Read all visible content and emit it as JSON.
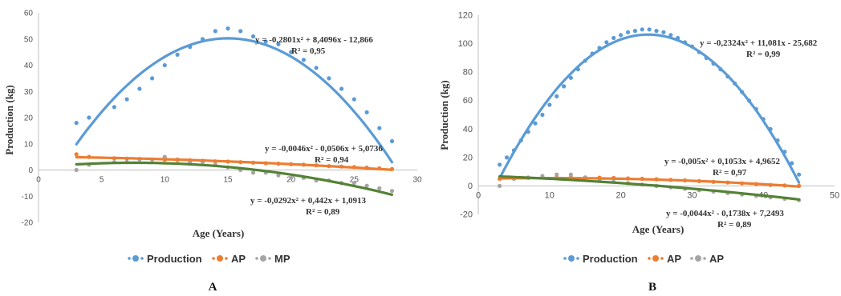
{
  "colors": {
    "production": "#5b9bd5",
    "ap": "#ed7d31",
    "mp": "#a5a5a5",
    "trend_green": "#548235",
    "axis": "#bfbfbf"
  },
  "chart_data": [
    {
      "type": "scatter",
      "panel_label": "A",
      "xlabel": "Age (Years)",
      "ylabel": "Production (kg)",
      "xlim": [
        0,
        30
      ],
      "ylim": [
        -20,
        60
      ],
      "x_ticks": [
        "0",
        "5",
        "10",
        "15",
        "20",
        "25",
        "30"
      ],
      "y_ticks": [
        "-20",
        "-10",
        "0",
        "10",
        "20",
        "30",
        "40",
        "50",
        "60"
      ],
      "legend_position": "bottom",
      "series": [
        {
          "name": "Production",
          "color_key": "production",
          "x": [
            3,
            4,
            6,
            7,
            8,
            9,
            10,
            11,
            12,
            13,
            14,
            15,
            16,
            17,
            18,
            19,
            20,
            21,
            22,
            23,
            24,
            25,
            26,
            27,
            28
          ],
          "y": [
            18,
            20,
            24,
            27,
            31,
            35,
            40,
            44,
            47,
            50,
            53,
            54,
            53,
            51,
            49,
            48,
            45,
            42,
            39,
            35,
            31,
            27,
            22,
            16,
            11
          ],
          "trend": {
            "a": -0.2801,
            "b": 8.4096,
            "c": -12.866,
            "color_key": "production",
            "x_range": [
              3,
              28
            ]
          }
        },
        {
          "name": "AP",
          "color_key": "ap",
          "x": [
            3,
            4,
            6,
            7,
            8,
            9,
            10,
            11,
            12,
            13,
            14,
            15,
            16,
            17,
            18,
            19,
            20,
            21,
            22,
            23,
            24,
            25,
            26,
            27,
            28
          ],
          "y": [
            6,
            5,
            4.5,
            4.3,
            4.2,
            4,
            3.9,
            3.8,
            3.7,
            3.5,
            3.3,
            3.2,
            3,
            2.8,
            2.6,
            2.4,
            2.2,
            2,
            1.8,
            1.5,
            1.3,
            1.1,
            0.9,
            0.6,
            0.4
          ],
          "trend": {
            "a": -0.0046,
            "b": -0.0506,
            "c": 5.0736,
            "color_key": "ap",
            "x_range": [
              3,
              28
            ]
          }
        },
        {
          "name": "MP",
          "color_key": "mp",
          "x": [
            3,
            4,
            6,
            7,
            8,
            9,
            10,
            11,
            12,
            13,
            14,
            15,
            16,
            17,
            18,
            19,
            20,
            21,
            22,
            23,
            24,
            25,
            26,
            27,
            28
          ],
          "y": [
            0,
            2,
            3,
            3,
            4,
            4,
            5,
            4,
            3,
            3,
            2,
            1,
            0,
            -1,
            -1,
            -2,
            -3,
            -3,
            -4,
            -4,
            -5,
            -5,
            -6,
            -7,
            -8
          ],
          "trend": {
            "a": -0.0292,
            "b": 0.442,
            "c": 1.0913,
            "color_key": "trend_green",
            "x_range": [
              3,
              28
            ]
          }
        }
      ],
      "equations": [
        {
          "line1": "y = -0,2801x² + 8,4096x - 12,866",
          "line2": "R² = 0,95"
        },
        {
          "line1": "y = -0,0046x² - 0,0506x + 5,0736",
          "line2": "R² = 0,94"
        },
        {
          "line1": "y = -0,0292x² + 0,442x + 1,0913",
          "line2": "R² = 0,89"
        }
      ]
    },
    {
      "type": "scatter",
      "panel_label": "B",
      "xlabel": "Age (Years)",
      "ylabel": "Production (kg)",
      "xlim": [
        0,
        50
      ],
      "ylim": [
        -20,
        120
      ],
      "x_ticks": [
        "0",
        "10",
        "20",
        "30",
        "40",
        "50"
      ],
      "y_ticks": [
        "-20",
        "0",
        "20",
        "40",
        "60",
        "80",
        "100",
        "120"
      ],
      "legend_position": "bottom",
      "series": [
        {
          "name": "Production",
          "color_key": "production",
          "x": [
            3,
            4,
            5,
            6,
            7,
            8,
            9,
            10,
            11,
            12,
            13,
            14,
            15,
            16,
            17,
            18,
            19,
            20,
            21,
            22,
            23,
            24,
            25,
            26,
            27,
            28,
            29,
            30,
            31,
            32,
            33,
            34,
            35,
            36,
            37,
            38,
            39,
            40,
            41,
            42,
            43,
            44,
            45
          ],
          "y": [
            15,
            20,
            25,
            32,
            38,
            44,
            50,
            57,
            63,
            70,
            76,
            82,
            88,
            93,
            97,
            101,
            104,
            106,
            108,
            109,
            110,
            110,
            109,
            108,
            106,
            104,
            101,
            98,
            94,
            90,
            86,
            82,
            77,
            72,
            66,
            60,
            54,
            47,
            40,
            32,
            24,
            16,
            8
          ],
          "trend": {
            "a": -0.2324,
            "b": 11.081,
            "c": -25.682,
            "color_key": "production",
            "x_range": [
              3,
              45
            ]
          }
        },
        {
          "name": "AP",
          "color_key": "ap",
          "x": [
            3,
            5,
            7,
            9,
            11,
            13,
            15,
            17,
            19,
            21,
            23,
            25,
            27,
            29,
            31,
            33,
            35,
            37,
            39,
            41,
            43,
            45
          ],
          "y": [
            5,
            5.4,
            5.7,
            5.9,
            6,
            6.1,
            6,
            5.8,
            5.6,
            5.3,
            5,
            4.7,
            4.3,
            3.9,
            3.4,
            2.9,
            2.4,
            1.8,
            1.3,
            0.7,
            0.3,
            0
          ],
          "trend": {
            "a": -0.005,
            "b": 0.1053,
            "c": 4.9652,
            "color_key": "ap",
            "x_range": [
              3,
              45
            ]
          }
        },
        {
          "name": "AP",
          "color_key": "mp",
          "x": [
            3,
            5,
            7,
            9,
            11,
            13,
            15,
            17,
            19,
            21,
            23,
            25,
            27,
            29,
            31,
            33,
            35,
            37,
            39,
            41,
            43,
            45
          ],
          "y": [
            0,
            5,
            6,
            7,
            8,
            8,
            6,
            4,
            3,
            2,
            1,
            0,
            -1,
            -2,
            -3,
            -4,
            -5,
            -6,
            -7,
            -8,
            -9,
            -10
          ],
          "trend": {
            "a": -0.0044,
            "b": -0.1738,
            "c": 7.2493,
            "color_key": "trend_green",
            "x_range": [
              3,
              45
            ]
          }
        }
      ],
      "equations": [
        {
          "line1": "y = -0,2324x² + 11,081x - 25,682",
          "line2": "R² = 0,99"
        },
        {
          "line1": "y = -0,005x² + 0,1053x + 4,9652",
          "line2": "R² = 0,97"
        },
        {
          "line1": "y = -0,0044x² - 0,1738x + 7,2493",
          "line2": "R² = 0,89"
        }
      ]
    }
  ]
}
